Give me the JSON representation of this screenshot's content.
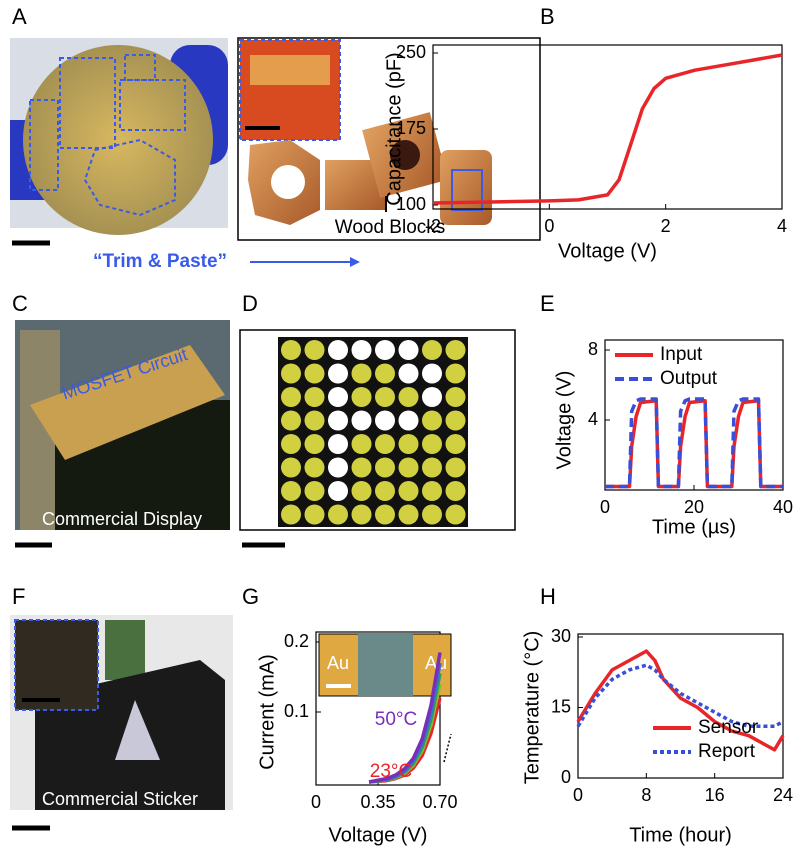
{
  "panel_letters": [
    "A",
    "B",
    "C",
    "D",
    "E",
    "F",
    "G",
    "H"
  ],
  "photo_text": {
    "wood_blocks": "Wood Blocks",
    "trim_paste": "“Trim & Paste”",
    "mosfet": "MOSFET Circuit",
    "display": "Commercial Display",
    "sticker": "Commercial Sticker"
  },
  "chart_data": [
    {
      "type": "line",
      "x_label": "Voltage (V)",
      "y_label": "Capacitance (pF)",
      "x": [
        -2,
        -1,
        0,
        0.5,
        1,
        1.2,
        1.4,
        1.6,
        1.8,
        2,
        2.5,
        3,
        3.5,
        4
      ],
      "series": [
        {
          "color": "#e8262a",
          "style": "solid",
          "values": [
            102,
            103,
            104,
            105,
            110,
            125,
            160,
            195,
            215,
            225,
            233,
            238,
            243,
            248
          ]
        }
      ],
      "xlim": [
        -2,
        4
      ],
      "xticks": [
        -2,
        0,
        2,
        4
      ],
      "ylim": [
        100,
        250
      ],
      "yticks": [
        100,
        175,
        250
      ]
    },
    {
      "type": "line",
      "x_label": "Time (µs)",
      "y_label": "Voltage (V)",
      "x": [
        0,
        5.5,
        6,
        7,
        8,
        11.5,
        12,
        16.5,
        17,
        18,
        19,
        22.5,
        23,
        28.5,
        29,
        30,
        31,
        34.5,
        35,
        40
      ],
      "series": [
        {
          "name": "Input",
          "color": "#e8262a",
          "style": "solid",
          "values": [
            0.2,
            0.2,
            2.5,
            4.2,
            5,
            5.1,
            0.2,
            0.2,
            2.5,
            4.2,
            5,
            5.1,
            0.2,
            0.2,
            2.5,
            4.2,
            5,
            5.1,
            0.2,
            0.2
          ]
        },
        {
          "name": "Output",
          "color": "#3a4fd8",
          "style": "dashed",
          "values": [
            0.2,
            0.2,
            4.5,
            5.1,
            5.2,
            5.2,
            0.2,
            0.2,
            4.5,
            5.1,
            5.2,
            5.2,
            0.2,
            0.2,
            4.5,
            5.1,
            5.2,
            5.2,
            0.2,
            0.2
          ]
        }
      ],
      "xlim": [
        0,
        40
      ],
      "xticks": [
        0,
        20,
        40
      ],
      "ylim": [
        0,
        8
      ],
      "yticks": [
        4,
        8
      ],
      "legend": "upper left"
    },
    {
      "type": "line",
      "x_label": "Voltage (V)",
      "y_label": "Current (mA)",
      "x": [
        0.3,
        0.4,
        0.45,
        0.5,
        0.55,
        0.6,
        0.65,
        0.7
      ],
      "series": [
        {
          "color": "#e8262a",
          "style": "solid",
          "values": [
            0,
            0.002,
            0.005,
            0.01,
            0.02,
            0.038,
            0.07,
            0.12
          ]
        },
        {
          "color": "#8bb832",
          "style": "solid",
          "values": [
            0,
            0.003,
            0.006,
            0.012,
            0.024,
            0.045,
            0.082,
            0.14
          ]
        },
        {
          "color": "#2aa05a",
          "style": "solid",
          "values": [
            0,
            0.003,
            0.007,
            0.014,
            0.027,
            0.05,
            0.09,
            0.155
          ]
        },
        {
          "color": "#3a6ad8",
          "style": "solid",
          "values": [
            0,
            0.004,
            0.008,
            0.016,
            0.03,
            0.056,
            0.1,
            0.17
          ]
        },
        {
          "color": "#7a2fb8",
          "style": "solid",
          "values": [
            0,
            0.005,
            0.01,
            0.019,
            0.034,
            0.062,
            0.11,
            0.185
          ]
        }
      ],
      "xlim": [
        0,
        0.7
      ],
      "xticks": [
        0,
        0.35,
        {
          "value": 0.7,
          "label": "0.70"
        }
      ],
      "ylim": [
        0,
        0.2
      ],
      "yticks": [
        0.1,
        0.2
      ],
      "annotations": [
        {
          "text": "50°C",
          "color": "#7a2fb8"
        },
        {
          "text": "23°C",
          "color": "#e8262a"
        }
      ],
      "inset_labels": [
        "Au",
        "Au"
      ]
    },
    {
      "type": "line",
      "x_label": "Time (hour)",
      "y_label": "Temperature (°C)",
      "x": [
        0,
        2,
        4,
        6,
        8,
        9,
        10,
        12,
        14,
        16,
        18,
        20,
        22,
        23,
        24
      ],
      "series": [
        {
          "name": "Sensor",
          "color": "#e8262a",
          "style": "solid",
          "values": [
            12,
            18,
            23,
            25,
            27,
            25,
            21,
            17,
            15,
            12,
            10,
            9,
            7,
            6,
            9
          ]
        },
        {
          "name": "Report",
          "color": "#3a4fd8",
          "style": "dotted",
          "values": [
            11,
            17,
            21,
            23,
            24,
            23,
            21,
            18,
            16,
            14,
            12,
            11,
            11,
            11,
            12
          ]
        }
      ],
      "xlim": [
        0,
        24
      ],
      "xticks": [
        0,
        8,
        16,
        24
      ],
      "ylim": [
        0,
        30
      ],
      "yticks": [
        0,
        15,
        30
      ],
      "legend": "lower right"
    }
  ]
}
